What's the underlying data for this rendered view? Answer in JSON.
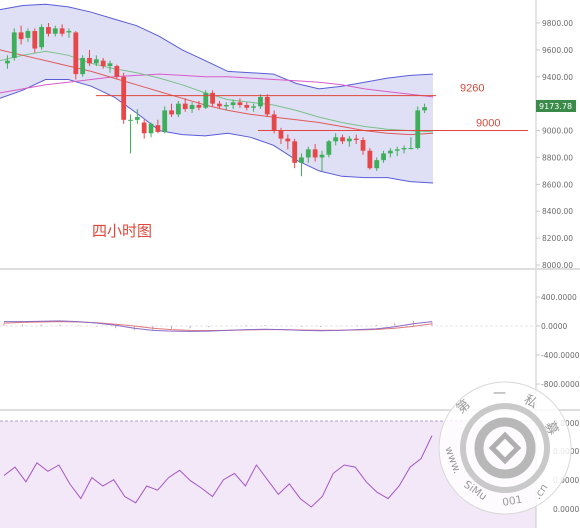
{
  "chart_data": [
    {
      "id": "price",
      "type": "candlestick",
      "title": "四小时图",
      "ylim": [
        8000,
        9900
      ],
      "y_ticks": [
        "9800.00",
        "9600.00",
        "9400.00",
        "9200.00",
        "9000.00",
        "8800.00",
        "8600.00",
        "8400.00",
        "8200.00",
        "8000.00"
      ],
      "last_price": "9173.78",
      "annotations": [
        {
          "label": "9260",
          "value": 9260
        },
        {
          "label": "9000",
          "value": 9000
        }
      ],
      "candles": [
        {
          "o": 9500,
          "h": 9560,
          "l": 9460,
          "c": 9520
        },
        {
          "o": 9540,
          "h": 9760,
          "l": 9520,
          "c": 9730
        },
        {
          "o": 9730,
          "h": 9780,
          "l": 9640,
          "c": 9680
        },
        {
          "o": 9690,
          "h": 9760,
          "l": 9660,
          "c": 9740
        },
        {
          "o": 9740,
          "h": 9760,
          "l": 9580,
          "c": 9610
        },
        {
          "o": 9620,
          "h": 9790,
          "l": 9600,
          "c": 9770
        },
        {
          "o": 9770,
          "h": 9800,
          "l": 9700,
          "c": 9720
        },
        {
          "o": 9720,
          "h": 9780,
          "l": 9700,
          "c": 9760
        },
        {
          "o": 9760,
          "h": 9790,
          "l": 9700,
          "c": 9720
        },
        {
          "o": 9730,
          "h": 9760,
          "l": 9690,
          "c": 9740
        },
        {
          "o": 9730,
          "h": 9740,
          "l": 9380,
          "c": 9420
        },
        {
          "o": 9420,
          "h": 9560,
          "l": 9400,
          "c": 9540
        },
        {
          "o": 9540,
          "h": 9600,
          "l": 9480,
          "c": 9500
        },
        {
          "o": 9500,
          "h": 9560,
          "l": 9480,
          "c": 9530
        },
        {
          "o": 9520,
          "h": 9540,
          "l": 9460,
          "c": 9480
        },
        {
          "o": 9480,
          "h": 9520,
          "l": 9430,
          "c": 9500
        },
        {
          "o": 9480,
          "h": 9490,
          "l": 9380,
          "c": 9400
        },
        {
          "o": 9400,
          "h": 9430,
          "l": 9050,
          "c": 9080
        },
        {
          "o": 9080,
          "h": 9120,
          "l": 8830,
          "c": 9080
        },
        {
          "o": 9080,
          "h": 9160,
          "l": 9050,
          "c": 9100
        },
        {
          "o": 9060,
          "h": 9080,
          "l": 8940,
          "c": 8980
        },
        {
          "o": 8980,
          "h": 9060,
          "l": 8950,
          "c": 9050
        },
        {
          "o": 9040,
          "h": 9080,
          "l": 8980,
          "c": 8990
        },
        {
          "o": 8990,
          "h": 9180,
          "l": 8980,
          "c": 9150
        },
        {
          "o": 9150,
          "h": 9200,
          "l": 9100,
          "c": 9120
        },
        {
          "o": 9120,
          "h": 9220,
          "l": 9100,
          "c": 9200
        },
        {
          "o": 9200,
          "h": 9240,
          "l": 9140,
          "c": 9160
        },
        {
          "o": 9160,
          "h": 9210,
          "l": 9130,
          "c": 9190
        },
        {
          "o": 9190,
          "h": 9220,
          "l": 9150,
          "c": 9170
        },
        {
          "o": 9170,
          "h": 9300,
          "l": 9160,
          "c": 9280
        },
        {
          "o": 9280,
          "h": 9300,
          "l": 9180,
          "c": 9200
        },
        {
          "o": 9200,
          "h": 9220,
          "l": 9160,
          "c": 9180
        },
        {
          "o": 9180,
          "h": 9210,
          "l": 9150,
          "c": 9190
        },
        {
          "o": 9190,
          "h": 9230,
          "l": 9160,
          "c": 9210
        },
        {
          "o": 9210,
          "h": 9240,
          "l": 9170,
          "c": 9190
        },
        {
          "o": 9190,
          "h": 9210,
          "l": 9150,
          "c": 9170
        },
        {
          "o": 9170,
          "h": 9200,
          "l": 9140,
          "c": 9180
        },
        {
          "o": 9180,
          "h": 9270,
          "l": 9160,
          "c": 9250
        },
        {
          "o": 9250,
          "h": 9270,
          "l": 9100,
          "c": 9120
        },
        {
          "o": 9120,
          "h": 9150,
          "l": 8980,
          "c": 9000
        },
        {
          "o": 9000,
          "h": 9020,
          "l": 8900,
          "c": 8940
        },
        {
          "o": 8940,
          "h": 8970,
          "l": 8860,
          "c": 8920
        },
        {
          "o": 8920,
          "h": 8940,
          "l": 8720,
          "c": 8760
        },
        {
          "o": 8760,
          "h": 8830,
          "l": 8660,
          "c": 8800
        },
        {
          "o": 8800,
          "h": 8880,
          "l": 8760,
          "c": 8860
        },
        {
          "o": 8860,
          "h": 8900,
          "l": 8770,
          "c": 8800
        },
        {
          "o": 8800,
          "h": 8850,
          "l": 8700,
          "c": 8820
        },
        {
          "o": 8820,
          "h": 8930,
          "l": 8800,
          "c": 8920
        },
        {
          "o": 8920,
          "h": 8980,
          "l": 8890,
          "c": 8950
        },
        {
          "o": 8950,
          "h": 8970,
          "l": 8900,
          "c": 8920
        },
        {
          "o": 8920,
          "h": 8960,
          "l": 8880,
          "c": 8940
        },
        {
          "o": 8940,
          "h": 8970,
          "l": 8900,
          "c": 8930
        },
        {
          "o": 8930,
          "h": 8950,
          "l": 8820,
          "c": 8850
        },
        {
          "o": 8850,
          "h": 8870,
          "l": 8710,
          "c": 8720
        },
        {
          "o": 8720,
          "h": 8800,
          "l": 8700,
          "c": 8780
        },
        {
          "o": 8780,
          "h": 8850,
          "l": 8760,
          "c": 8830
        },
        {
          "o": 8830,
          "h": 8870,
          "l": 8800,
          "c": 8850
        },
        {
          "o": 8850,
          "h": 8880,
          "l": 8810,
          "c": 8860
        },
        {
          "o": 8860,
          "h": 8890,
          "l": 8830,
          "c": 8870
        },
        {
          "o": 8870,
          "h": 8950,
          "l": 8860,
          "c": 8870
        },
        {
          "o": 8870,
          "h": 9180,
          "l": 8860,
          "c": 9150
        },
        {
          "o": 9150,
          "h": 9200,
          "l": 9130,
          "c": 9174
        }
      ],
      "bb_upper": [
        9900,
        9930,
        9940,
        9920,
        9880,
        9830,
        9780,
        9700,
        9600,
        9520,
        9440,
        9430,
        9420,
        9350,
        9310,
        9330,
        9360,
        9390,
        9410,
        9420
      ],
      "bb_lower": [
        9240,
        9300,
        9380,
        9380,
        9330,
        9250,
        9130,
        9000,
        8970,
        8960,
        8980,
        8950,
        8890,
        8780,
        8700,
        8660,
        8650,
        8650,
        8620,
        8610
      ],
      "ma_green": [
        9520,
        9560,
        9590,
        9560,
        9500,
        9460,
        9430,
        9390,
        9340,
        9280,
        9230,
        9210,
        9190,
        9150,
        9100,
        9060,
        9030,
        9010,
        9000,
        8990
      ],
      "ma_red": [
        9600,
        9560,
        9520,
        9480,
        9440,
        9390,
        9340,
        9290,
        9240,
        9190,
        9150,
        9120,
        9100,
        9080,
        9060,
        9030,
        9000,
        8980,
        8970,
        8980
      ],
      "ma_magenta": [
        9280,
        9310,
        9340,
        9360,
        9380,
        9400,
        9410,
        9420,
        9410,
        9400,
        9400,
        9390,
        9380,
        9370,
        9360,
        9340,
        9310,
        9290,
        9270,
        9250
      ]
    },
    {
      "id": "macd",
      "type": "line",
      "ylim": [
        -900,
        500
      ],
      "y_ticks": [
        "400.0000",
        "0.0000",
        "-400.0000",
        "-800.0000"
      ],
      "macd": [
        60,
        60,
        65,
        70,
        60,
        40,
        10,
        -30,
        -60,
        -70,
        -75,
        -70,
        -60,
        -50,
        -45,
        -50,
        -60,
        -65,
        -60,
        -50,
        -40,
        -10,
        30,
        60
      ],
      "signal": [
        40,
        50,
        55,
        60,
        55,
        45,
        25,
        0,
        -30,
        -50,
        -60,
        -62,
        -60,
        -55,
        -50,
        -50,
        -55,
        -58,
        -58,
        -55,
        -48,
        -30,
        -5,
        30
      ]
    },
    {
      "id": "oscillator",
      "type": "line",
      "y_ticks": [
        "0.0000",
        "0.0000",
        "0.0000",
        "0.0000"
      ],
      "values": [
        50,
        58,
        44,
        62,
        54,
        60,
        42,
        28,
        48,
        40,
        46,
        30,
        24,
        40,
        36,
        48,
        55,
        45,
        38,
        30,
        46,
        52,
        40,
        60,
        46,
        32,
        42,
        28,
        20,
        30,
        52,
        60,
        58,
        44,
        34,
        28,
        40,
        58,
        66,
        88
      ]
    }
  ],
  "watermark": {
    "text": "第 一 私 募 www.SiMu001.cn"
  }
}
